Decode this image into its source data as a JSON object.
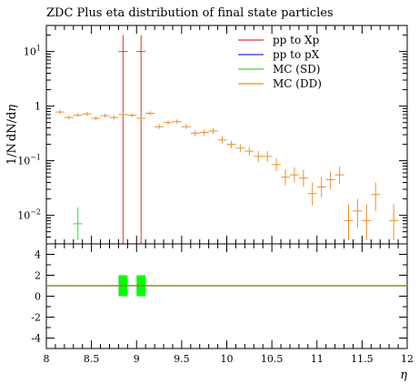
{
  "chart_data": {
    "type": "scatter",
    "title": "ZDC Plus eta distribution of final state particles",
    "xlabel": "η",
    "ylabel": "1/N dN/dη",
    "xlim": [
      8,
      12
    ],
    "ylim": [
      0.003,
      30
    ],
    "yscale": "log",
    "ratio_ylim": [
      -5,
      5
    ],
    "x_ticks": [
      "8",
      "8.5",
      "9",
      "9.5",
      "10",
      "10.5",
      "11",
      "11.5",
      "12"
    ],
    "y_ticks": [
      {
        "v": 0.01,
        "base": "10",
        "exp": "−2"
      },
      {
        "v": 0.1,
        "base": "10",
        "exp": "−1"
      },
      {
        "v": 1,
        "base": "1",
        "exp": ""
      },
      {
        "v": 10,
        "base": "10",
        "exp": "1"
      }
    ],
    "ratio_y_ticks": [
      "4",
      "2",
      "0",
      "-2",
      "-4"
    ],
    "legend_position": "top-right",
    "series": [
      {
        "name": "pp to Xp",
        "color": "#e3342f",
        "style": "hist",
        "points": [
          {
            "x": 8.85,
            "y": 10,
            "err": 10
          },
          {
            "x": 9.05,
            "y": 10,
            "err": 10
          }
        ]
      },
      {
        "name": "pp to pX",
        "color": "#2b2bff",
        "style": "hist",
        "points": []
      },
      {
        "name": "MC (SD)",
        "color": "#3fd63f",
        "style": "points",
        "points": [
          {
            "x": 8.35,
            "y": 0.007,
            "lo": 0.0035,
            "hi": 0.014
          }
        ]
      },
      {
        "name": "MC (DD)",
        "color": "#e8912a",
        "style": "points",
        "points": [
          {
            "x": 8.15,
            "y": 0.78,
            "lo": 0.72,
            "hi": 0.86
          },
          {
            "x": 8.25,
            "y": 0.62,
            "lo": 0.57,
            "hi": 0.68
          },
          {
            "x": 8.35,
            "y": 0.68,
            "lo": 0.63,
            "hi": 0.74
          },
          {
            "x": 8.45,
            "y": 0.72,
            "lo": 0.66,
            "hi": 0.78
          },
          {
            "x": 8.55,
            "y": 0.6,
            "lo": 0.55,
            "hi": 0.65
          },
          {
            "x": 8.65,
            "y": 0.67,
            "lo": 0.62,
            "hi": 0.73
          },
          {
            "x": 8.75,
            "y": 0.62,
            "lo": 0.57,
            "hi": 0.67
          },
          {
            "x": 8.85,
            "y": 0.7,
            "lo": 0.65,
            "hi": 0.76
          },
          {
            "x": 8.95,
            "y": 0.68,
            "lo": 0.63,
            "hi": 0.74
          },
          {
            "x": 9.05,
            "y": 0.6,
            "lo": 0.55,
            "hi": 0.65
          },
          {
            "x": 9.15,
            "y": 0.74,
            "lo": 0.68,
            "hi": 0.8
          },
          {
            "x": 9.25,
            "y": 0.42,
            "lo": 0.38,
            "hi": 0.47
          },
          {
            "x": 9.35,
            "y": 0.5,
            "lo": 0.46,
            "hi": 0.55
          },
          {
            "x": 9.45,
            "y": 0.52,
            "lo": 0.47,
            "hi": 0.57
          },
          {
            "x": 9.55,
            "y": 0.42,
            "lo": 0.38,
            "hi": 0.47
          },
          {
            "x": 9.65,
            "y": 0.32,
            "lo": 0.28,
            "hi": 0.36
          },
          {
            "x": 9.75,
            "y": 0.33,
            "lo": 0.29,
            "hi": 0.37
          },
          {
            "x": 9.85,
            "y": 0.35,
            "lo": 0.31,
            "hi": 0.4
          },
          {
            "x": 9.95,
            "y": 0.24,
            "lo": 0.21,
            "hi": 0.28
          },
          {
            "x": 10.05,
            "y": 0.2,
            "lo": 0.17,
            "hi": 0.23
          },
          {
            "x": 10.15,
            "y": 0.17,
            "lo": 0.145,
            "hi": 0.2
          },
          {
            "x": 10.25,
            "y": 0.15,
            "lo": 0.125,
            "hi": 0.18
          },
          {
            "x": 10.35,
            "y": 0.12,
            "lo": 0.095,
            "hi": 0.15
          },
          {
            "x": 10.45,
            "y": 0.12,
            "lo": 0.095,
            "hi": 0.15
          },
          {
            "x": 10.55,
            "y": 0.085,
            "lo": 0.065,
            "hi": 0.11
          },
          {
            "x": 10.65,
            "y": 0.05,
            "lo": 0.035,
            "hi": 0.07
          },
          {
            "x": 10.75,
            "y": 0.055,
            "lo": 0.04,
            "hi": 0.075
          },
          {
            "x": 10.85,
            "y": 0.048,
            "lo": 0.033,
            "hi": 0.068
          },
          {
            "x": 10.95,
            "y": 0.025,
            "lo": 0.015,
            "hi": 0.04
          },
          {
            "x": 11.05,
            "y": 0.033,
            "lo": 0.021,
            "hi": 0.05
          },
          {
            "x": 11.15,
            "y": 0.045,
            "lo": 0.03,
            "hi": 0.065
          },
          {
            "x": 11.25,
            "y": 0.055,
            "lo": 0.038,
            "hi": 0.078
          },
          {
            "x": 11.35,
            "y": 0.008,
            "lo": 0.0035,
            "hi": 0.016
          },
          {
            "x": 11.45,
            "y": 0.012,
            "lo": 0.006,
            "hi": 0.02
          },
          {
            "x": 11.55,
            "y": 0.008,
            "lo": 0.0035,
            "hi": 0.016
          },
          {
            "x": 11.65,
            "y": 0.024,
            "lo": 0.012,
            "hi": 0.04
          },
          {
            "x": 11.85,
            "y": 0.008,
            "lo": 0.0035,
            "hi": 0.016
          }
        ]
      }
    ],
    "ratio": {
      "reference_value": 1,
      "line_color": "#8a8a2a",
      "band_color": "#00ff00",
      "bands": [
        {
          "x0": 8.8,
          "x1": 8.9,
          "y0": 0,
          "y1": 2
        },
        {
          "x0": 9.0,
          "x1": 9.1,
          "y0": 0,
          "y1": 2
        }
      ]
    }
  }
}
